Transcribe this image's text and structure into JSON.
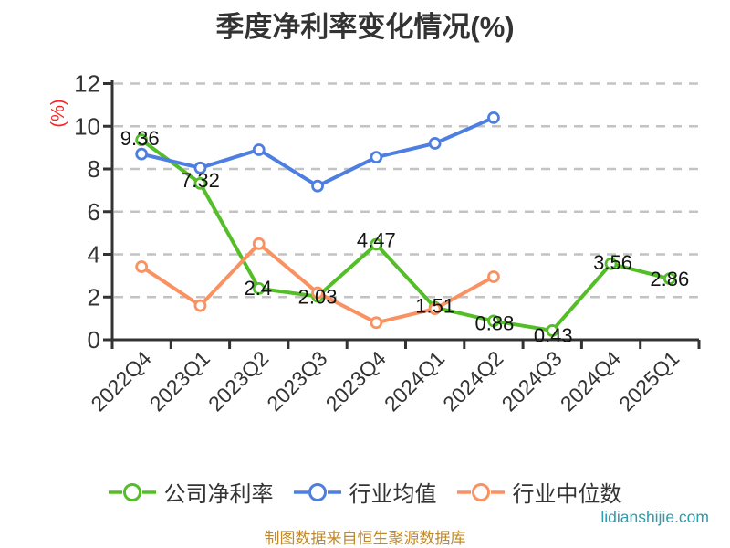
{
  "chart_data": {
    "type": "line",
    "title": "季度净利率变化情况(%)",
    "ylabel": "(%)",
    "ylabel_color": "#ff2020",
    "categories": [
      "2022Q4",
      "2023Q1",
      "2023Q2",
      "2023Q3",
      "2023Q4",
      "2024Q1",
      "2024Q2",
      "2024Q3",
      "2024Q4",
      "2025Q1"
    ],
    "ylim": [
      0,
      12
    ],
    "yticks": [
      0,
      2,
      4,
      6,
      8,
      10,
      12
    ],
    "grid": "horizontal-dashed",
    "legend_position": "bottom",
    "series": [
      {
        "name": "公司净利率",
        "color": "#54be28",
        "values": [
          9.36,
          7.32,
          2.4,
          2.03,
          4.47,
          1.51,
          0.88,
          0.43,
          3.56,
          2.86
        ],
        "show_labels": true,
        "label_offsets": [
          [
            -2,
            -2
          ],
          [
            0,
            -4
          ],
          [
            -1,
            -1
          ],
          [
            0,
            0
          ],
          [
            0,
            -5
          ],
          [
            0,
            -2
          ],
          [
            1,
            2
          ],
          [
            1,
            5
          ],
          [
            2,
            -2
          ],
          [
            0,
            0
          ]
        ]
      },
      {
        "name": "行业均值",
        "color": "#4d7ee0",
        "values": [
          8.7,
          8.05,
          8.9,
          7.2,
          8.55,
          9.2,
          10.4
        ],
        "show_labels": false
      },
      {
        "name": "行业中位数",
        "color": "#fa9161",
        "values": [
          3.42,
          1.6,
          4.5,
          2.2,
          0.8,
          1.45,
          2.95
        ],
        "show_labels": false
      }
    ],
    "footer": "制图数据来自恒生聚源数据库",
    "watermark": "lidianshijie.com",
    "label_color": "#141414",
    "axis_color": "#333333",
    "grid_color": "#c3c3c3"
  }
}
